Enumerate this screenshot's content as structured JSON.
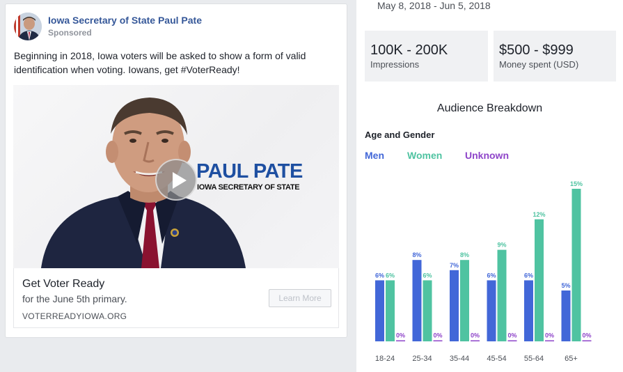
{
  "ad": {
    "page_name": "Iowa Secretary of State Paul Pate",
    "sponsored": "Sponsored",
    "body": "Beginning in 2018, Iowa voters will be asked to show a form of valid identification when voting. Iowans, get #VoterReady!",
    "video_overlay": {
      "name": "PAUL PATE",
      "title": "IOWA SECRETARY OF STATE"
    },
    "cta": {
      "headline": "Get Voter Ready",
      "subtitle": "for the June 5th primary.",
      "url": "VOTERREADYIOWA.ORG",
      "button_label": "Learn More"
    }
  },
  "panel": {
    "date_range": "May 8, 2018 - Jun 5, 2018",
    "impressions": {
      "value": "100K - 200K",
      "label": "Impressions"
    },
    "money_spent": {
      "value": "$500 - $999",
      "label": "Money spent (USD)"
    },
    "breakdown_title": "Audience Breakdown",
    "age_gender_title": "Age and Gender"
  },
  "colors": {
    "men": "#4267d8",
    "women": "#4fc3a1",
    "unknown": "#8e44c9",
    "link": "#365899"
  },
  "chart_data": {
    "type": "bar",
    "categories": [
      "18-24",
      "25-34",
      "35-44",
      "45-54",
      "55-64",
      "65+"
    ],
    "series": [
      {
        "name": "Men",
        "values": [
          6,
          8,
          7,
          6,
          6,
          5
        ]
      },
      {
        "name": "Women",
        "values": [
          6,
          6,
          8,
          9,
          12,
          15
        ]
      },
      {
        "name": "Unknown",
        "values": [
          0,
          0,
          0,
          0,
          0,
          0
        ]
      }
    ],
    "value_suffix": "%",
    "ylim": [
      0,
      15
    ],
    "grid": false,
    "legend": "top-left"
  }
}
